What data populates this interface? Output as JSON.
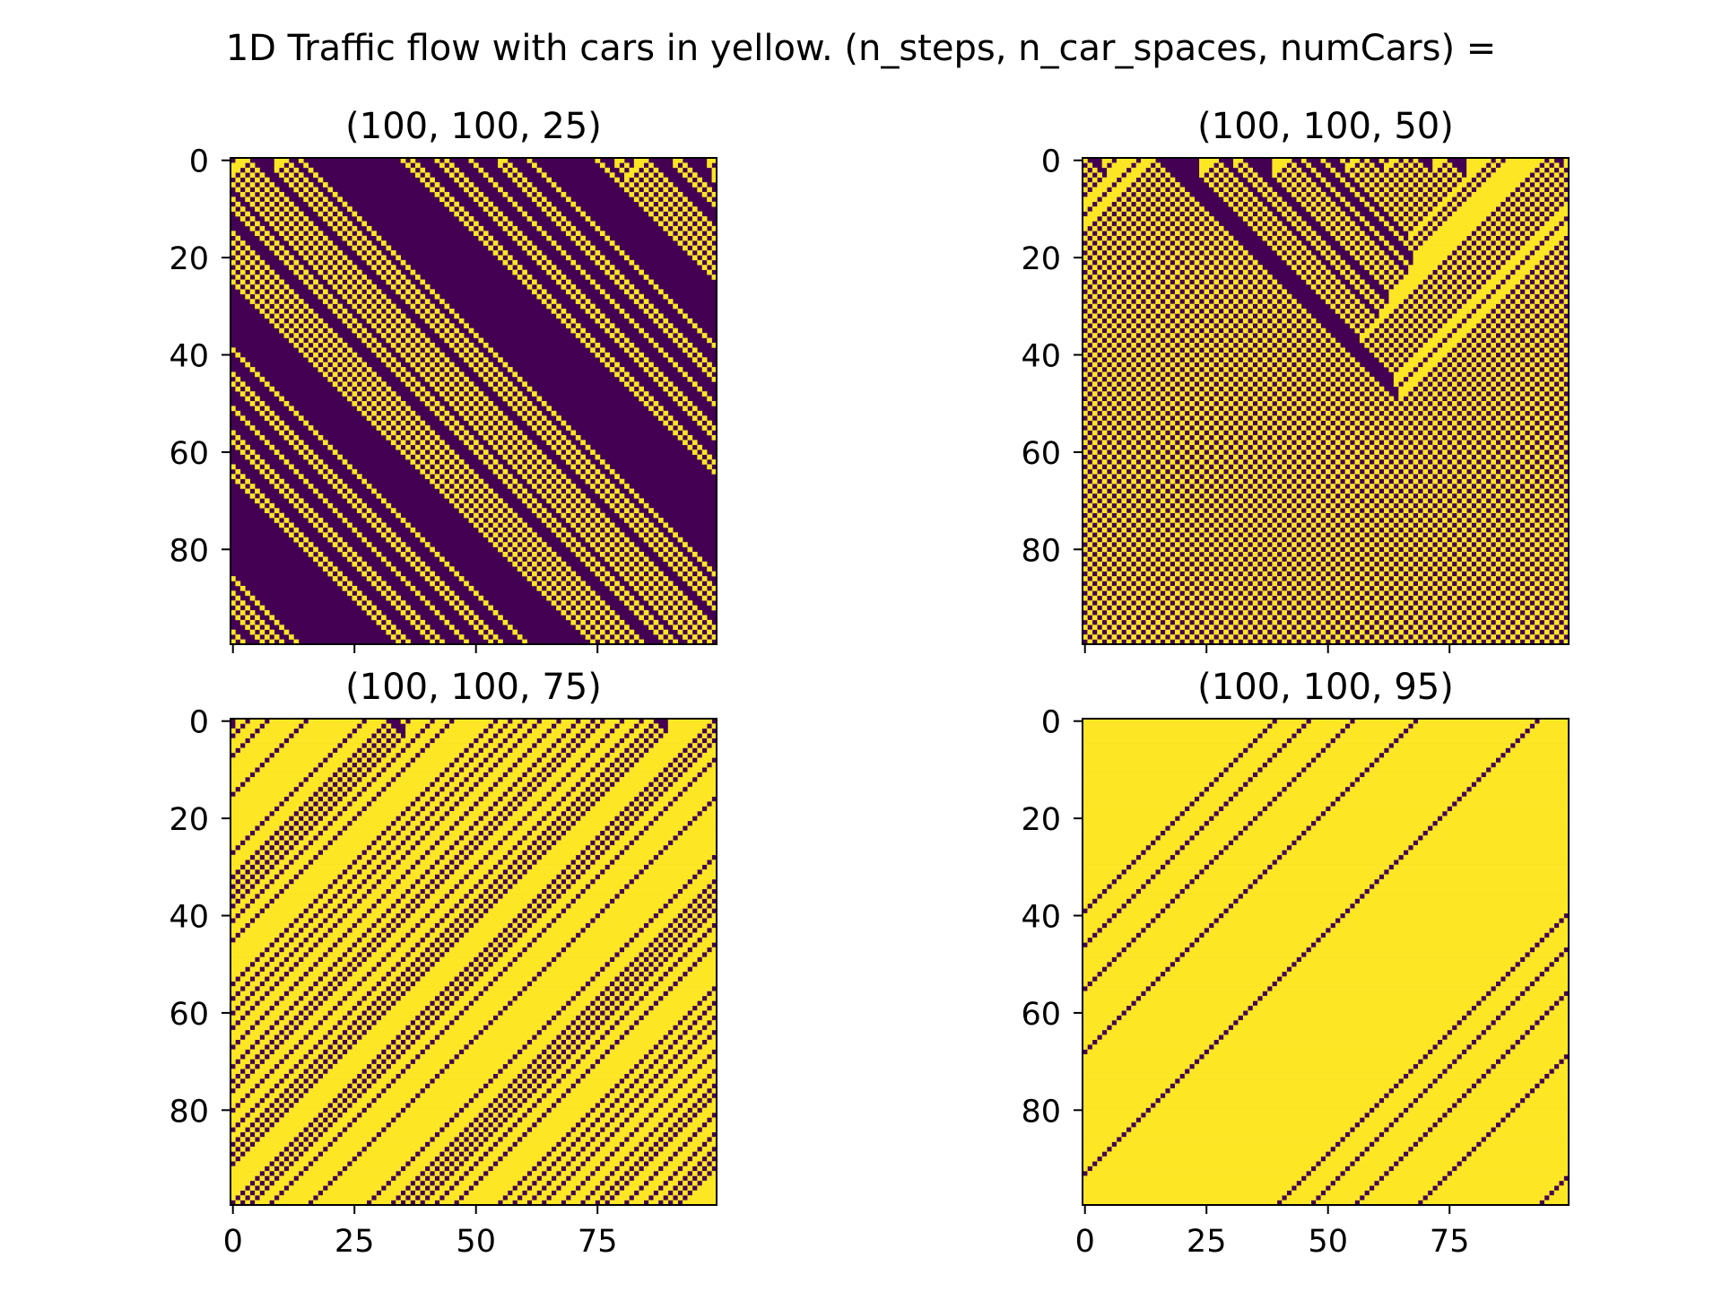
{
  "figure": {
    "suptitle": "1D Traffic flow with cars in yellow. (n_steps, n_car_spaces, numCars) ="
  },
  "colors": {
    "car": "#fde725",
    "empty": "#440154",
    "frame": "#000000"
  },
  "chart_data": [
    {
      "type": "heatmap",
      "title": "(100, 100, 25)",
      "rows": 100,
      "cols": 100,
      "num_cars": 25,
      "xlim": [
        -0.5,
        99.5
      ],
      "ylim": [
        99.5,
        -0.5
      ],
      "xticks": [],
      "yticks": [
        0,
        20,
        40,
        60,
        80
      ],
      "xlabel": "",
      "ylabel": "",
      "dominant_value": "empty"
    },
    {
      "type": "heatmap",
      "title": "(100, 100, 50)",
      "rows": 100,
      "cols": 100,
      "num_cars": 50,
      "xlim": [
        -0.5,
        99.5
      ],
      "ylim": [
        99.5,
        -0.5
      ],
      "xticks": [],
      "yticks": [
        0,
        20,
        40,
        60,
        80
      ],
      "xlabel": "",
      "ylabel": "",
      "dominant_value": "mixed"
    },
    {
      "type": "heatmap",
      "title": "(100, 100, 75)",
      "rows": 100,
      "cols": 100,
      "num_cars": 75,
      "xlim": [
        -0.5,
        99.5
      ],
      "ylim": [
        99.5,
        -0.5
      ],
      "xticks": [
        0,
        25,
        50,
        75
      ],
      "yticks": [
        0,
        20,
        40,
        60,
        80
      ],
      "xlabel": "",
      "ylabel": "",
      "dominant_value": "car"
    },
    {
      "type": "heatmap",
      "title": "(100, 100, 95)",
      "rows": 100,
      "cols": 100,
      "num_cars": 95,
      "xlim": [
        -0.5,
        99.5
      ],
      "ylim": [
        99.5,
        -0.5
      ],
      "xticks": [
        0,
        25,
        50,
        75
      ],
      "yticks": [
        0,
        20,
        40,
        60,
        80
      ],
      "xlabel": "",
      "ylabel": "",
      "dominant_value": "car"
    }
  ]
}
